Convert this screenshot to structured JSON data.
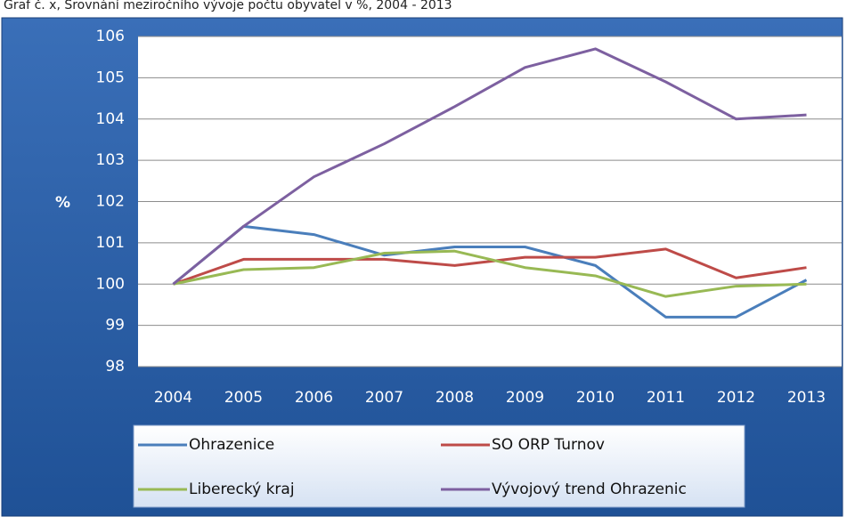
{
  "chart_data": {
    "type": "line",
    "title": "Graf č. x, Srovnání meziročního vývoje počtu obyvatel v %, 2004 - 2013",
    "y_label": "%",
    "categories": [
      "2004",
      "2005",
      "2006",
      "2007",
      "2008",
      "2009",
      "2010",
      "2011",
      "2012",
      "2013"
    ],
    "series": [
      {
        "name": "Ohrazenice",
        "color": "#4a7ebb",
        "values": [
          100,
          101.4,
          101.2,
          100.7,
          100.9,
          100.9,
          100.45,
          99.2,
          99.2,
          100.1
        ]
      },
      {
        "name": "SO ORP Turnov",
        "color": "#be4b48",
        "values": [
          100,
          100.6,
          100.6,
          100.6,
          100.45,
          100.65,
          100.65,
          100.85,
          100.15,
          100.4
        ]
      },
      {
        "name": "Liberecký kraj",
        "color": "#98b954",
        "values": [
          100,
          100.35,
          100.4,
          100.75,
          100.8,
          100.4,
          100.2,
          99.7,
          99.95,
          100.0
        ]
      },
      {
        "name": "Vývojový trend Ohrazenic",
        "color": "#7d60a0",
        "values": [
          100,
          101.4,
          102.6,
          103.4,
          104.3,
          105.25,
          105.7,
          104.9,
          104.0,
          104.1
        ]
      }
    ],
    "ylim": [
      98,
      106
    ],
    "yticks": [
      98,
      99,
      100,
      101,
      102,
      103,
      104,
      105,
      106
    ],
    "grid": true
  }
}
